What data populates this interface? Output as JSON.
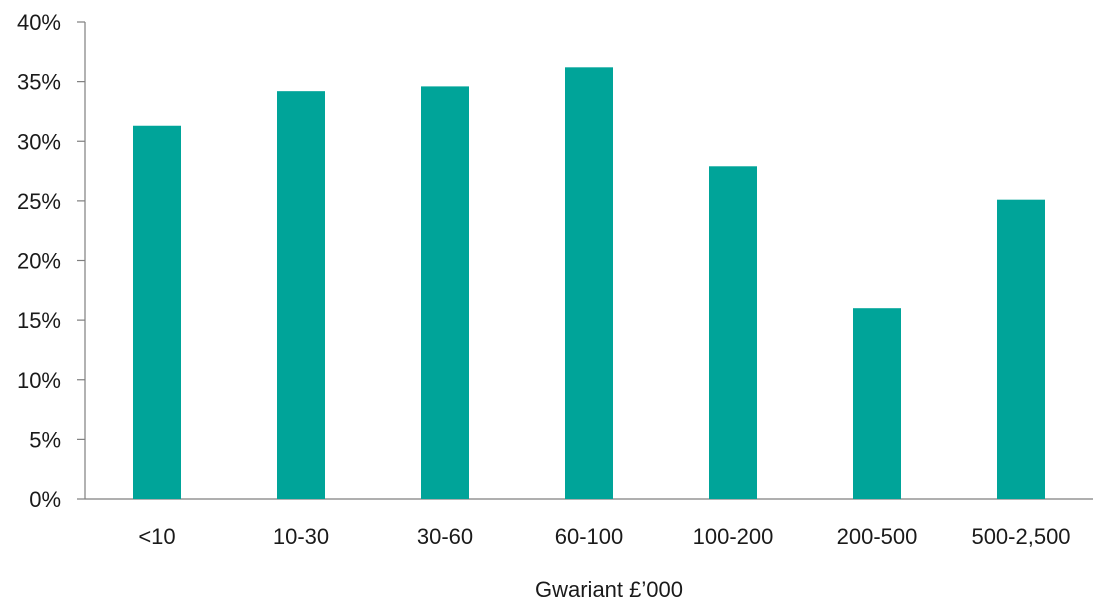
{
  "chart_data": {
    "type": "bar",
    "title": "",
    "xlabel": "Gwariant £’000",
    "ylabel": "",
    "categories": [
      "<10",
      "10-30",
      "30-60",
      "60-100",
      "100-200",
      "200-500",
      "500-2,500"
    ],
    "values": [
      31.3,
      34.2,
      34.6,
      36.2,
      27.9,
      16.0,
      25.1
    ],
    "ylim": [
      0,
      40
    ],
    "yticks": [
      "0%",
      "5%",
      "10%",
      "15%",
      "20%",
      "25%",
      "30%",
      "35%",
      "40%"
    ],
    "grid": false,
    "legend": "none",
    "bar_color": "#00A499"
  }
}
